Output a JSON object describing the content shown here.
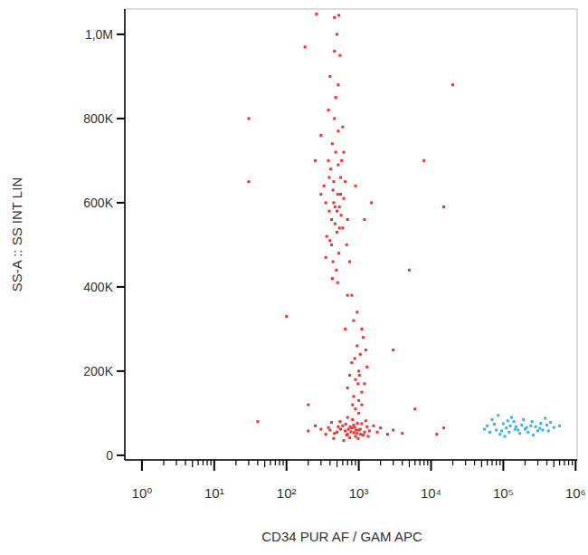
{
  "chart_data": {
    "type": "scatter",
    "x_label": "CD34 PUR AF / GAM APC",
    "y_label": "SS-A :: SS INT LIN",
    "log": "x",
    "grid": false,
    "marker": "square",
    "xlim": [
      0.58,
      1050000
    ],
    "ylim": [
      -11000,
      1060000
    ],
    "xticks": [
      {
        "value": 1,
        "label": "10⁰"
      },
      {
        "value": 10,
        "label": "10¹"
      },
      {
        "value": 100,
        "label": "10²"
      },
      {
        "value": 1000,
        "label": "10³"
      },
      {
        "value": 10000,
        "label": "10⁴"
      },
      {
        "value": 100000,
        "label": "10⁵"
      },
      {
        "value": 1000000,
        "label": "10⁶"
      }
    ],
    "yticks": [
      0,
      {
        "value": 200000,
        "label": "200K"
      },
      {
        "value": 400000,
        "label": "400K"
      },
      {
        "value": 600000,
        "label": "600K"
      },
      {
        "value": 800000,
        "label": "800K"
      },
      {
        "value": 1000000,
        "label": "1,0M"
      }
    ],
    "series": [
      {
        "color": "#ff2b2b",
        "x": [
          420,
          510,
          380,
          600,
          450,
          530,
          350,
          480,
          560,
          400,
          470,
          620,
          330,
          520,
          440,
          580,
          390,
          500,
          460,
          540,
          360,
          650,
          410,
          490,
          570,
          430,
          520,
          300,
          700,
          450,
          480,
          400,
          550,
          500,
          460,
          520,
          380,
          600,
          430,
          510,
          350,
          680,
          440,
          560,
          470,
          390,
          620,
          500,
          420,
          540,
          900,
          1200,
          250,
          750,
          800,
          850,
          300,
          1500,
          460,
          530,
          400,
          500,
          600,
          700,
          800,
          900,
          1000,
          1100,
          1200,
          1300,
          450,
          550,
          650,
          750,
          850,
          950,
          1050,
          1150,
          1400,
          1600,
          300,
          350,
          250,
          200,
          1800,
          2000,
          2500,
          3000,
          4000,
          700,
          620,
          720,
          820,
          920,
          520,
          420,
          680,
          780,
          880,
          980,
          560,
          660,
          760,
          860,
          960,
          1060,
          1250,
          1350,
          460,
          380,
          900,
          1000,
          1100,
          800,
          950,
          1200,
          850,
          1050,
          1150,
          750,
          1000,
          900,
          1300,
          700,
          1100,
          980,
          880,
          1020,
          1250,
          820,
          1100,
          950,
          700,
          650,
          1000,
          40,
          100,
          30,
          180,
          15000,
          20000,
          8000,
          5000,
          30,
          200,
          15000,
          12000,
          6000,
          3000,
          260
        ],
        "values": [
          560000,
          620000,
          700000,
          540000,
          650000,
          480000,
          600000,
          720000,
          660000,
          510000,
          590000,
          610000,
          640000,
          770000,
          460000,
          700000,
          580000,
          530000,
          800000,
          590000,
          520000,
          650000,
          680000,
          440000,
          570000,
          740000,
          690000,
          620000,
          560000,
          600000,
          850000,
          900000,
          950000,
          1000000,
          1040000,
          880000,
          820000,
          780000,
          420000,
          410000,
          470000,
          500000,
          630000,
          620000,
          550000,
          660000,
          720000,
          580000,
          500000,
          540000,
          640000,
          560000,
          700000,
          460000,
          380000,
          320000,
          760000,
          600000,
          960000,
          1045000,
          60000,
          55000,
          70000,
          50000,
          65000,
          45000,
          60000,
          75000,
          55000,
          68000,
          40000,
          80000,
          58000,
          42000,
          72000,
          52000,
          62000,
          48000,
          58000,
          70000,
          62000,
          50000,
          70000,
          58000,
          55000,
          65000,
          50000,
          60000,
          52000,
          90000,
          35000,
          62000,
          85000,
          60000,
          68000,
          78000,
          48000,
          56000,
          66000,
          40000,
          62000,
          74000,
          68000,
          54000,
          76000,
          50000,
          82000,
          45000,
          52000,
          66000,
          180000,
          200000,
          150000,
          220000,
          260000,
          170000,
          140000,
          240000,
          280000,
          190000,
          130000,
          110000,
          210000,
          160000,
          120000,
          170000,
          230000,
          190000,
          250000,
          120000,
          300000,
          340000,
          380000,
          300000,
          100000,
          80000,
          330000,
          650000,
          970000,
          590000,
          880000,
          700000,
          440000,
          800000,
          120000,
          65000,
          50000,
          110000,
          250000,
          1048000
        ]
      },
      {
        "color": "#35b5e5",
        "x": [
          60000,
          80000,
          100000,
          120000,
          150000,
          200000,
          250000,
          300000,
          400000,
          500000,
          70000,
          90000,
          110000,
          130000,
          160000,
          180000,
          220000,
          280000,
          350000,
          450000,
          55000,
          75000,
          95000,
          140000,
          170000,
          240000,
          320000,
          380000,
          600000,
          85000,
          105000,
          125000,
          190000,
          260000,
          420000,
          65000,
          115000,
          210000,
          330000,
          145000
        ],
        "values": [
          70000,
          60000,
          75000,
          55000,
          68000,
          62000,
          80000,
          58000,
          72000,
          66000,
          85000,
          50000,
          65000,
          90000,
          60000,
          72000,
          55000,
          68000,
          60000,
          78000,
          62000,
          74000,
          58000,
          80000,
          52000,
          70000,
          64000,
          88000,
          70000,
          95000,
          45000,
          70000,
          85000,
          48000,
          58000,
          55000,
          82000,
          66000,
          76000,
          62000
        ]
      }
    ]
  }
}
